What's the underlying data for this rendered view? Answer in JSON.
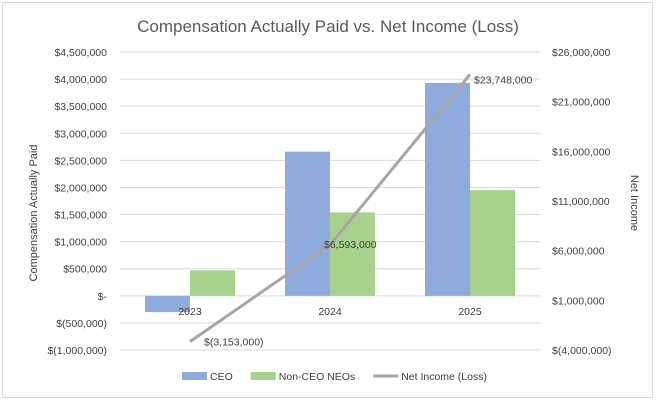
{
  "chart_data": {
    "type": "bar",
    "title": "Compensation Actually Paid vs. Net Income (Loss)",
    "categories": [
      "2023",
      "2024",
      "2025"
    ],
    "series": [
      {
        "name": "CEO",
        "axis": "left",
        "kind": "bar",
        "color": "#8faadc",
        "values": [
          -300000,
          2660000,
          3930000
        ]
      },
      {
        "name": "Non-CEO NEOs",
        "axis": "left",
        "kind": "bar",
        "color": "#a9d18e",
        "values": [
          470000,
          1540000,
          1950000
        ]
      },
      {
        "name": "Net Income (Loss)",
        "axis": "right",
        "kind": "line",
        "color": "#a6a6a6",
        "values": [
          -3153000,
          6593000,
          23748000
        ],
        "data_labels": [
          "$(3,153,000)",
          "$6,593,000",
          "$23,748,000"
        ]
      }
    ],
    "ylabel": "Compensation Actually Paid",
    "y2label": "Net Income",
    "ylim": [
      -1000000,
      4500000
    ],
    "y2lim": [
      -4000000,
      26000000
    ],
    "yticks": [
      -1000000,
      -500000,
      0,
      500000,
      1000000,
      1500000,
      2000000,
      2500000,
      3000000,
      3500000,
      4000000,
      4500000
    ],
    "ytick_labels": [
      "$(1,000,000)",
      "$(500,000)",
      "$-",
      "$500,000",
      "$1,000,000",
      "$1,500,000",
      "$2,000,000",
      "$2,500,000",
      "$3,000,000",
      "$3,500,000",
      "$4,000,000",
      "$4,500,000"
    ],
    "y2ticks": [
      -4000000,
      1000000,
      6000000,
      11000000,
      16000000,
      21000000,
      26000000
    ],
    "y2tick_labels": [
      "$(4,000,000)",
      "$1,000,000",
      "$6,000,000",
      "$11,000,000",
      "$16,000,000",
      "$21,000,000",
      "$26,000,000"
    ],
    "grid": true,
    "legend": "bottom"
  }
}
